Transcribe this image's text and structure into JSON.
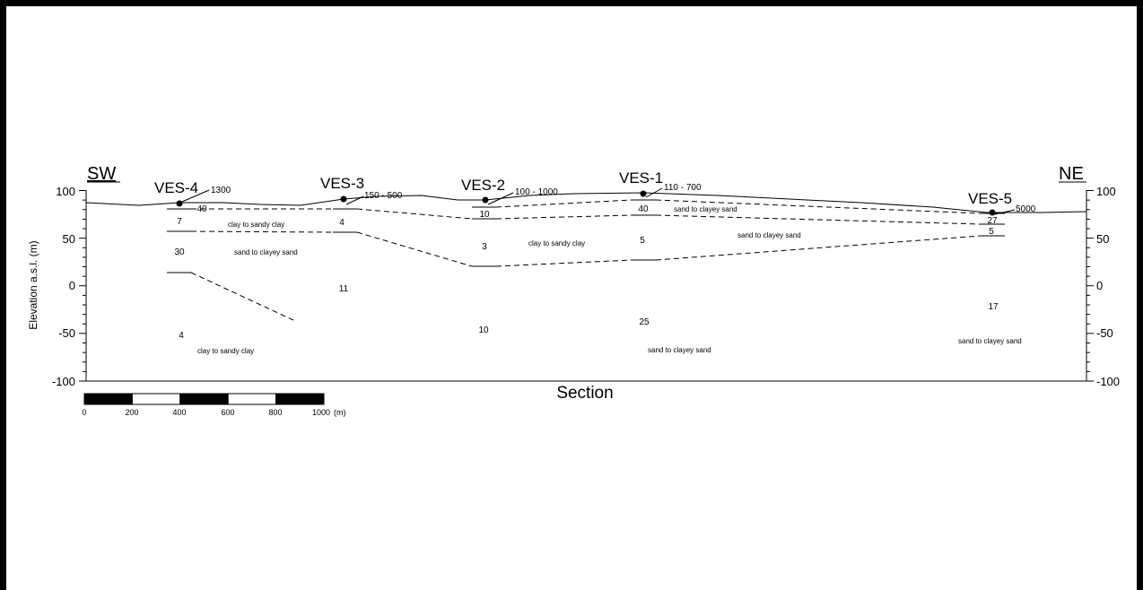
{
  "orientation": {
    "left": "SW",
    "right": "NE"
  },
  "axes": {
    "y_label": "Elevation a.s.l. (m)",
    "x_label": "Section",
    "y_ticks": [
      "100",
      "50",
      "0",
      "-50",
      "-100"
    ]
  },
  "scale_bar": {
    "labels": [
      "0",
      "200",
      "400",
      "600",
      "800",
      "1000"
    ],
    "unit": "(m)"
  },
  "soundings": [
    {
      "name": "VES-4",
      "top": "1300"
    },
    {
      "name": "VES-3",
      "top": "150 - 500"
    },
    {
      "name": "VES-2",
      "top": "100 - 1000"
    },
    {
      "name": "VES-1",
      "top": "110 - 700"
    },
    {
      "name": "VES-5",
      "top": "5000"
    }
  ],
  "layer_values": {
    "ves4": [
      "40",
      "7",
      "30",
      "4"
    ],
    "ves3": [
      "4",
      "11"
    ],
    "ves2": [
      "10",
      "3",
      "10"
    ],
    "ves1": [
      "40",
      "5",
      "25"
    ],
    "ves5": [
      "27",
      "5",
      "17"
    ]
  },
  "lithology": {
    "l1": "clay to sandy clay",
    "l2": "sand to clayey sand",
    "l3": "clay to sandy clay",
    "l4": "sand to clayey sand",
    "l5": "clay to sandy clay",
    "l6": "sand to clayey sand",
    "l7": "sand to clayey sand"
  }
}
